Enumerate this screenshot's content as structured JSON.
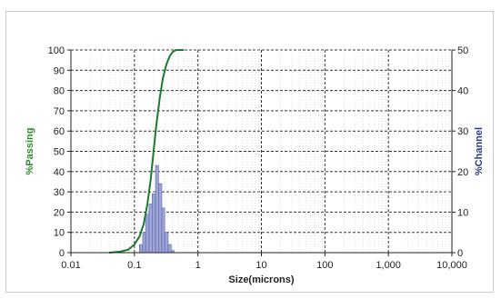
{
  "chart_data": {
    "type": "line",
    "x_scale": "log",
    "xlabel": "Size(microns)",
    "ylabel_left": "%Passing",
    "ylabel_right": "%Channel",
    "xlim": [
      0.01,
      10000
    ],
    "ylim_left": [
      0,
      100
    ],
    "ylim_right": [
      0,
      50
    ],
    "x_tick_labels": [
      "0.01",
      "0.1",
      "1",
      "10",
      "100",
      "1,000",
      "10,000"
    ],
    "y_tick_labels_left": [
      "0",
      "10",
      "20",
      "30",
      "40",
      "50",
      "60",
      "70",
      "80",
      "90",
      "100"
    ],
    "y_tick_labels_right": [
      "0",
      "10",
      "20",
      "30",
      "40",
      "50"
    ],
    "grid": true,
    "colors": {
      "passing_line": "#1a7a2e",
      "passing_label": "#2e8b2e",
      "channel_bars": "#9ea6d8",
      "channel_bar_edge": "#5560a8",
      "channel_label": "#2a3a8a",
      "grid": "#333333",
      "axis": "#222222"
    },
    "series": [
      {
        "name": "%Passing",
        "axis": "left",
        "kind": "line",
        "x": [
          0.04,
          0.06,
          0.08,
          0.1,
          0.12,
          0.14,
          0.16,
          0.18,
          0.2,
          0.22,
          0.25,
          0.28,
          0.32,
          0.36,
          0.4,
          0.45,
          0.5,
          0.6
        ],
        "y": [
          0,
          0.5,
          1.5,
          4,
          8,
          14,
          24,
          36,
          50,
          62,
          76,
          86,
          93,
          97,
          99,
          100,
          100,
          100
        ]
      },
      {
        "name": "%Channel",
        "axis": "right",
        "kind": "bar",
        "x": [
          0.12,
          0.135,
          0.15,
          0.17,
          0.19,
          0.215,
          0.24,
          0.27,
          0.3,
          0.34,
          0.38
        ],
        "y": [
          2,
          5,
          9.5,
          12,
          14.5,
          21.5,
          17,
          11,
          5,
          2,
          0.5
        ]
      }
    ]
  }
}
